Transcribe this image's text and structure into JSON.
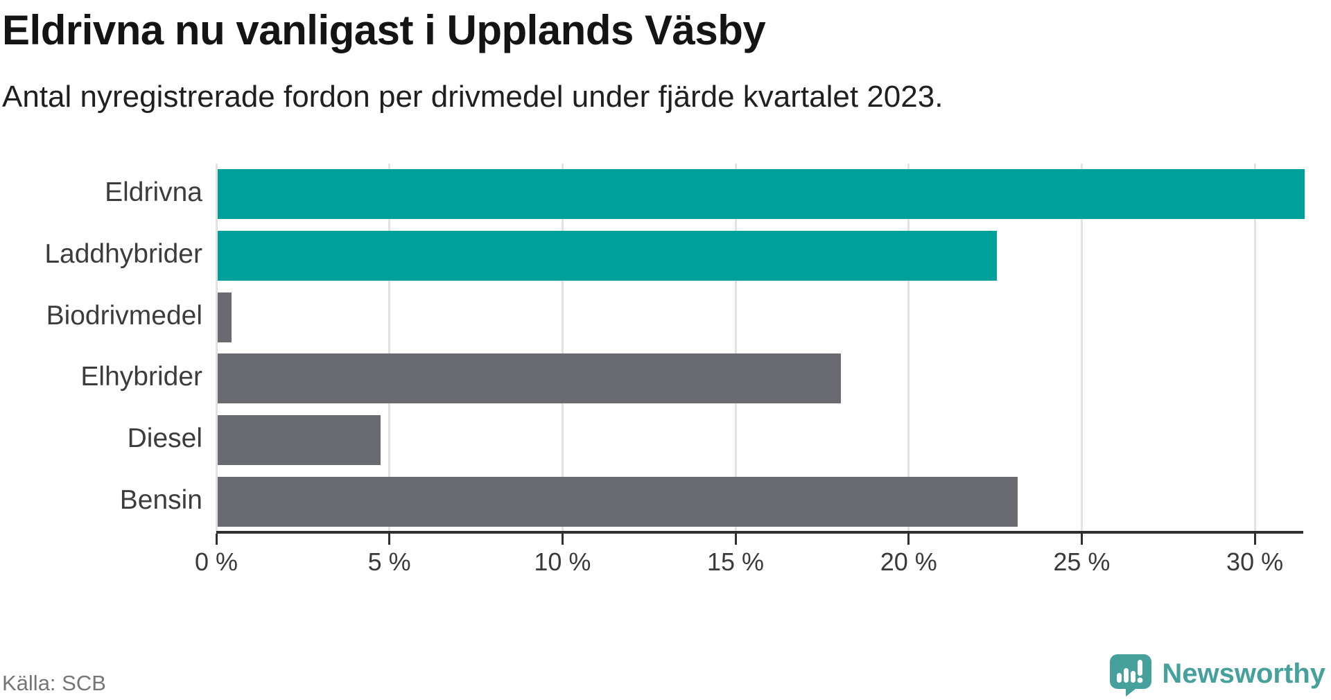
{
  "header": {
    "title": "Eldrivna nu vanligast i Upplands Väsby",
    "subtitle": "Antal nyregistrerade fordon per drivmedel under fjärde kvartalet 2023."
  },
  "chart_data": {
    "type": "bar",
    "orientation": "horizontal",
    "title": "Eldrivna nu vanligast i Upplands Väsby",
    "subtitle": "Antal nyregistrerade fordon per drivmedel under fjärde kvartalet 2023.",
    "categories": [
      "Eldrivna",
      "Laddhybrider",
      "Biodrivmedel",
      "Elhybrider",
      "Diesel",
      "Bensin"
    ],
    "values": [
      31.4,
      22.5,
      0.4,
      18.0,
      4.7,
      23.1
    ],
    "unit": "%",
    "xlim": [
      0,
      31.4
    ],
    "x_ticks": [
      0,
      5,
      10,
      15,
      20,
      25,
      30
    ],
    "x_tick_labels": [
      "0 %",
      "5 %",
      "10 %",
      "15 %",
      "20 %",
      "25 %",
      "30 %"
    ],
    "bar_colors": [
      "#00a09a",
      "#00a09a",
      "#6a6a71",
      "#6a6a71",
      "#6a6a71",
      "#6a6a71"
    ],
    "highlight_color": "#00a09a",
    "default_color": "#6a6a71",
    "grid": true,
    "legend": "none",
    "xlabel": "",
    "ylabel": ""
  },
  "footer": {
    "source": "Källa: SCB",
    "brand": "Newsworthy"
  },
  "colors": {
    "teal_bar": "#00a09a",
    "gray_bar": "#6a6a71",
    "gridline": "#e2e2e2",
    "axis": "#2f2f2f",
    "title_text": "#141414",
    "label_text": "#3c3c3c",
    "source_text": "#767676",
    "brand_teal": "#46a09c"
  }
}
